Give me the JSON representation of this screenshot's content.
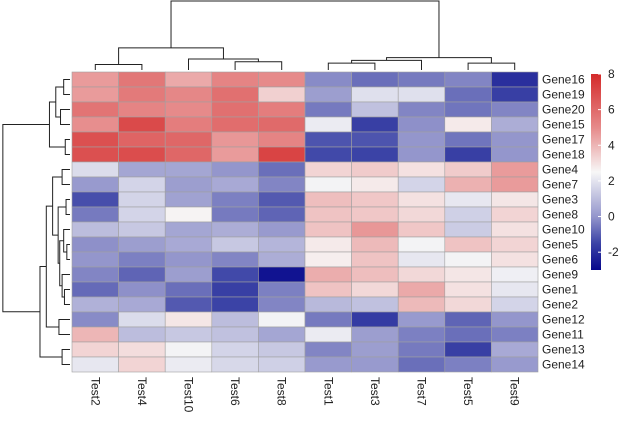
{
  "chart_data": {
    "type": "heatmap",
    "title": "",
    "columns": [
      "Test2",
      "Test4",
      "Test10",
      "Test6",
      "Test8",
      "Test1",
      "Test3",
      "Test7",
      "Test5",
      "Test9"
    ],
    "rows": [
      "Gene16",
      "Gene19",
      "Gene20",
      "Gene15",
      "Gene17",
      "Gene18",
      "Gene4",
      "Gene7",
      "Gene3",
      "Gene8",
      "Gene10",
      "Gene5",
      "Gene6",
      "Gene9",
      "Gene1",
      "Gene2",
      "Gene12",
      "Gene11",
      "Gene13",
      "Gene14"
    ],
    "values": [
      [
        4.6,
        5.6,
        4.3,
        5.2,
        5.0,
        -0.2,
        -0.7,
        -0.5,
        -0.3,
        -2.0
      ],
      [
        4.6,
        5.5,
        5.1,
        5.8,
        3.4,
        0.2,
        1.9,
        1.9,
        -0.7,
        -1.6
      ],
      [
        5.7,
        5.2,
        5.0,
        5.8,
        5.4,
        -0.5,
        1.1,
        -0.3,
        -0.6,
        -0.3
      ],
      [
        4.9,
        7.0,
        5.4,
        5.9,
        6.0,
        2.2,
        -1.6,
        -0.1,
        2.8,
        0.6
      ],
      [
        6.8,
        6.2,
        6.1,
        4.7,
        5.2,
        -1.2,
        -1.2,
        0.0,
        -0.6,
        0.0
      ],
      [
        6.8,
        6.9,
        6.1,
        4.6,
        7.2,
        -1.4,
        -1.5,
        0.0,
        -1.6,
        0.0
      ],
      [
        1.8,
        0.4,
        0.4,
        0.0,
        -0.7,
        3.3,
        3.5,
        3.0,
        3.5,
        4.6
      ],
      [
        0.1,
        1.6,
        0.2,
        0.5,
        -0.3,
        2.4,
        2.8,
        1.6,
        4.1,
        4.6
      ],
      [
        -1.3,
        1.6,
        0.3,
        -0.4,
        -1.1,
        3.8,
        3.6,
        3.0,
        2.1,
        2.9
      ],
      [
        -0.5,
        1.6,
        2.6,
        -0.5,
        -0.9,
        3.7,
        3.6,
        3.2,
        1.5,
        3.3
      ],
      [
        1.0,
        1.3,
        0.4,
        0.6,
        0.1,
        3.7,
        4.7,
        3.6,
        1.4,
        3.0
      ],
      [
        -0.1,
        0.2,
        0.5,
        1.3,
        0.8,
        2.8,
        3.9,
        2.4,
        3.7,
        3.3
      ],
      [
        0.0,
        -0.4,
        0.0,
        -0.3,
        0.6,
        2.7,
        3.7,
        2.1,
        2.4,
        3.0
      ],
      [
        -0.3,
        -0.9,
        0.2,
        -1.4,
        -2.7,
        4.2,
        3.8,
        3.2,
        2.9,
        2.3
      ],
      [
        -0.8,
        -0.1,
        -0.7,
        -1.6,
        -0.4,
        3.7,
        3.2,
        4.3,
        3.0,
        2.1
      ],
      [
        0.7,
        0.5,
        -1.1,
        -1.5,
        -0.3,
        0.9,
        1.1,
        3.9,
        3.2,
        1.6
      ],
      [
        -0.2,
        1.8,
        2.9,
        1.0,
        2.4,
        -0.5,
        -1.7,
        0.1,
        -0.9,
        0.0
      ],
      [
        4.0,
        1.0,
        1.3,
        1.1,
        0.4,
        2.2,
        0.2,
        -0.4,
        -0.7,
        -0.4
      ],
      [
        3.3,
        3.1,
        2.4,
        1.6,
        1.3,
        -0.3,
        0.2,
        -0.5,
        -1.6,
        0.5
      ],
      [
        2.1,
        3.3,
        2.2,
        1.7,
        1.5,
        0.1,
        0.1,
        -0.7,
        -0.4,
        0.1
      ]
    ],
    "color_scale": {
      "min": -3,
      "max": 8,
      "stops": [
        {
          "value": -3,
          "color": "#07078c"
        },
        {
          "value": -1.5,
          "color": "#3b43a6"
        },
        {
          "value": 0,
          "color": "#9496cc"
        },
        {
          "value": 2.5,
          "color": "#f7f7f7"
        },
        {
          "value": 5,
          "color": "#e68a8a"
        },
        {
          "value": 8,
          "color": "#d42a2a"
        }
      ]
    },
    "legend": {
      "placement": "right",
      "ticks": [
        8,
        6,
        4,
        2,
        0,
        -2
      ]
    },
    "row_dendrogram": {
      "merges": [
        [
          [
            0,
            1
          ],
          [
            2,
            3
          ],
          [
            4,
            5
          ]
        ],
        "see script"
      ]
    },
    "column_dendrogram": {
      "groups": [
        [
          "Test2",
          "Test4",
          "Test10",
          "Test6",
          "Test8"
        ],
        [
          "Test1",
          "Test3",
          "Test7",
          "Test5",
          "Test9"
        ]
      ]
    }
  }
}
